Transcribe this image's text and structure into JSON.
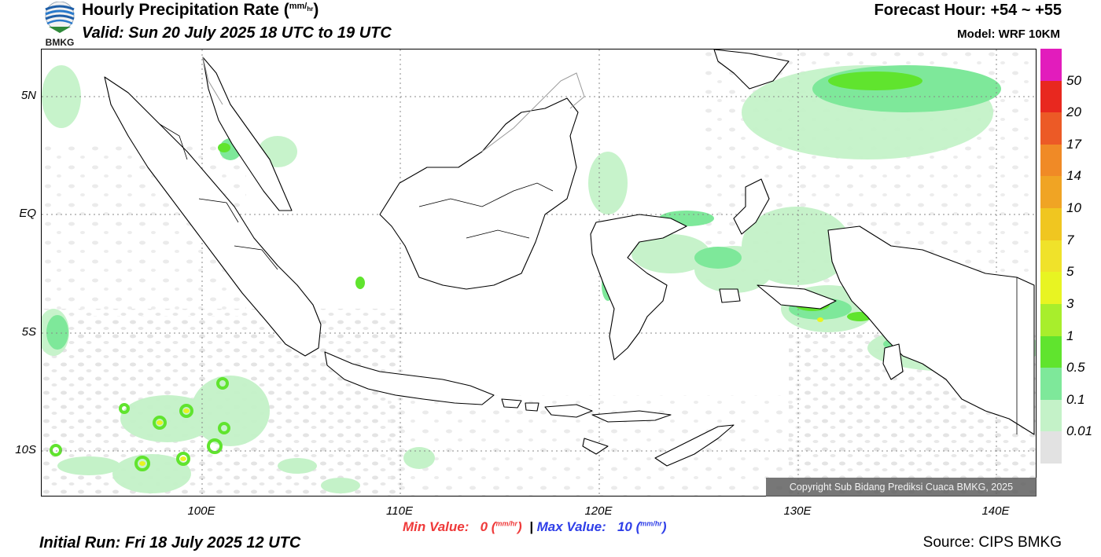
{
  "header": {
    "logo_text": "BMKG",
    "title": "Hourly Precipitation Rate (",
    "title_unit_num": "mm",
    "title_unit_den": "hr",
    "title_close": ")",
    "valid": "Valid: Sun 20 July 2025 18 UTC to 19 UTC",
    "forecast_hour": "Forecast Hour: +54 ~ +55",
    "model": "Model: WRF 10KM"
  },
  "map": {
    "lat_labels": [
      "5N",
      "EQ",
      "5S",
      "10S"
    ],
    "lon_labels": [
      "100E",
      "110E",
      "120E",
      "130E",
      "140E"
    ],
    "copyright": "Copyright Sub Bidang Prediksi Cuaca BMKG, 2025",
    "land_color": "#ffffff",
    "coast_color": "#000000",
    "gridline_style": "dotted"
  },
  "legend": {
    "labels": [
      "50",
      "20",
      "17",
      "14",
      "10",
      "7",
      "5",
      "3",
      "1",
      "0.5",
      "0.1",
      "0.01"
    ],
    "colors": [
      "#e21cbc",
      "#e8281f",
      "#ec5a26",
      "#f08a26",
      "#f0a424",
      "#f0c620",
      "#f0e22a",
      "#e8f422",
      "#a8ee2c",
      "#60e42e",
      "#7ee89a",
      "#c4f2c8",
      "#e2e2e2"
    ]
  },
  "footer": {
    "min_label": "Min Value:",
    "min_value": "0",
    "max_label": "Max Value:",
    "max_value": "10",
    "unit_num": "mm",
    "unit_den": "hr",
    "separator": "|",
    "initial_run": "Initial Run: Fri 18 July 2025 12 UTC",
    "source": "Source: CIPS BMKG"
  }
}
